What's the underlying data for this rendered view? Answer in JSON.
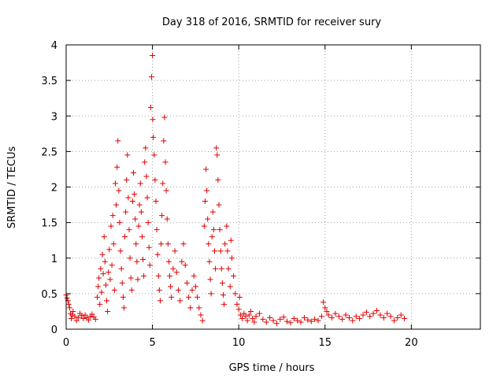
{
  "chart_data": {
    "type": "scatter",
    "title": "Day 318 of 2016, SRMTID for receiver sury",
    "xlabel": "GPS time / hours",
    "ylabel": "SRMTID / TECUs",
    "xlim": [
      0,
      24
    ],
    "ylim": [
      0,
      4
    ],
    "xticks": [
      0,
      5,
      10,
      15,
      20
    ],
    "xtick_labels": [
      "0",
      "5",
      "10",
      "15",
      "20"
    ],
    "yticks": [
      0,
      0.5,
      1,
      1.5,
      2,
      2.5,
      3,
      3.5,
      4
    ],
    "ytick_labels": [
      "0",
      "0.5",
      "1",
      "1.5",
      "2",
      "2.5",
      "3",
      "3.5",
      "4"
    ],
    "grid": true,
    "marker": "+",
    "marker_color": "#e00000",
    "series": [
      {
        "name": "SRMTID",
        "points": [
          [
            0.0,
            0.48
          ],
          [
            0.05,
            0.44
          ],
          [
            0.1,
            0.4
          ],
          [
            0.15,
            0.35
          ],
          [
            0.2,
            0.3
          ],
          [
            0.25,
            0.22
          ],
          [
            0.3,
            0.15
          ],
          [
            0.35,
            0.2
          ],
          [
            0.4,
            0.25
          ],
          [
            0.5,
            0.18
          ],
          [
            0.6,
            0.12
          ],
          [
            0.7,
            0.16
          ],
          [
            0.8,
            0.22
          ],
          [
            0.9,
            0.19
          ],
          [
            1.0,
            0.15
          ],
          [
            1.1,
            0.2
          ],
          [
            1.2,
            0.16
          ],
          [
            1.3,
            0.13
          ],
          [
            1.4,
            0.18
          ],
          [
            1.5,
            0.21
          ],
          [
            1.6,
            0.17
          ],
          [
            1.7,
            0.14
          ],
          [
            1.8,
            0.45
          ],
          [
            1.85,
            0.6
          ],
          [
            1.9,
            0.72
          ],
          [
            1.95,
            0.35
          ],
          [
            2.0,
            0.85
          ],
          [
            2.05,
            0.52
          ],
          [
            2.1,
            1.05
          ],
          [
            2.15,
            0.78
          ],
          [
            2.2,
            1.3
          ],
          [
            2.25,
            0.95
          ],
          [
            2.3,
            0.62
          ],
          [
            2.35,
            0.4
          ],
          [
            2.4,
            0.25
          ],
          [
            2.45,
            0.8
          ],
          [
            2.5,
            1.12
          ],
          [
            2.55,
            0.7
          ],
          [
            2.6,
            1.45
          ],
          [
            2.65,
            0.9
          ],
          [
            2.7,
            1.6
          ],
          [
            2.75,
            1.2
          ],
          [
            2.8,
            0.55
          ],
          [
            2.85,
            2.05
          ],
          [
            2.9,
            1.75
          ],
          [
            2.95,
            2.28
          ],
          [
            3.0,
            2.65
          ],
          [
            3.05,
            1.95
          ],
          [
            3.1,
            1.5
          ],
          [
            3.15,
            1.1
          ],
          [
            3.2,
            0.85
          ],
          [
            3.25,
            0.65
          ],
          [
            3.3,
            0.45
          ],
          [
            3.35,
            0.3
          ],
          [
            3.4,
            1.3
          ],
          [
            3.45,
            1.65
          ],
          [
            3.5,
            2.1
          ],
          [
            3.55,
            2.45
          ],
          [
            3.6,
            1.85
          ],
          [
            3.65,
            1.4
          ],
          [
            3.7,
            1.0
          ],
          [
            3.75,
            0.72
          ],
          [
            3.8,
            0.55
          ],
          [
            3.85,
            1.8
          ],
          [
            3.9,
            2.2
          ],
          [
            3.95,
            1.9
          ],
          [
            4.0,
            1.55
          ],
          [
            4.05,
            1.2
          ],
          [
            4.1,
            0.95
          ],
          [
            4.15,
            0.7
          ],
          [
            4.2,
            1.45
          ],
          [
            4.25,
            1.75
          ],
          [
            4.3,
            2.05
          ],
          [
            4.35,
            1.65
          ],
          [
            4.4,
            1.3
          ],
          [
            4.45,
            0.98
          ],
          [
            4.5,
            0.75
          ],
          [
            4.55,
            2.35
          ],
          [
            4.6,
            2.55
          ],
          [
            4.65,
            2.15
          ],
          [
            4.7,
            1.85
          ],
          [
            4.75,
            1.5
          ],
          [
            4.8,
            1.15
          ],
          [
            4.85,
            0.9
          ],
          [
            4.9,
            3.12
          ],
          [
            4.95,
            3.55
          ],
          [
            5.0,
            3.85
          ],
          [
            5.02,
            2.95
          ],
          [
            5.05,
            2.7
          ],
          [
            5.1,
            2.45
          ],
          [
            5.15,
            2.1
          ],
          [
            5.2,
            1.8
          ],
          [
            5.25,
            1.4
          ],
          [
            5.3,
            1.05
          ],
          [
            5.35,
            0.75
          ],
          [
            5.4,
            0.55
          ],
          [
            5.45,
            0.4
          ],
          [
            5.5,
            1.2
          ],
          [
            5.55,
            1.6
          ],
          [
            5.6,
            2.05
          ],
          [
            5.65,
            2.65
          ],
          [
            5.7,
            2.98
          ],
          [
            5.75,
            2.35
          ],
          [
            5.8,
            1.95
          ],
          [
            5.85,
            1.55
          ],
          [
            5.9,
            1.2
          ],
          [
            5.95,
            0.95
          ],
          [
            6.0,
            0.75
          ],
          [
            6.05,
            0.6
          ],
          [
            6.1,
            0.45
          ],
          [
            6.2,
            0.85
          ],
          [
            6.3,
            1.1
          ],
          [
            6.4,
            0.8
          ],
          [
            6.5,
            0.55
          ],
          [
            6.6,
            0.4
          ],
          [
            6.7,
            0.95
          ],
          [
            6.8,
            1.2
          ],
          [
            6.9,
            0.9
          ],
          [
            7.0,
            0.65
          ],
          [
            7.1,
            0.45
          ],
          [
            7.2,
            0.3
          ],
          [
            7.3,
            0.55
          ],
          [
            7.4,
            0.75
          ],
          [
            7.5,
            0.6
          ],
          [
            7.6,
            0.45
          ],
          [
            7.7,
            0.3
          ],
          [
            7.8,
            0.2
          ],
          [
            7.9,
            0.12
          ],
          [
            8.0,
            1.45
          ],
          [
            8.05,
            1.8
          ],
          [
            8.1,
            2.25
          ],
          [
            8.15,
            1.95
          ],
          [
            8.2,
            1.55
          ],
          [
            8.25,
            1.2
          ],
          [
            8.3,
            0.95
          ],
          [
            8.35,
            0.7
          ],
          [
            8.4,
            0.5
          ],
          [
            8.45,
            1.3
          ],
          [
            8.5,
            1.65
          ],
          [
            8.55,
            1.4
          ],
          [
            8.6,
            1.1
          ],
          [
            8.65,
            0.85
          ],
          [
            8.7,
            2.55
          ],
          [
            8.75,
            2.45
          ],
          [
            8.8,
            2.1
          ],
          [
            8.85,
            1.75
          ],
          [
            8.9,
            1.4
          ],
          [
            8.95,
            1.1
          ],
          [
            9.0,
            0.85
          ],
          [
            9.05,
            0.65
          ],
          [
            9.1,
            0.48
          ],
          [
            9.15,
            0.35
          ],
          [
            9.2,
            1.2
          ],
          [
            9.3,
            1.45
          ],
          [
            9.35,
            1.1
          ],
          [
            9.4,
            0.85
          ],
          [
            9.5,
            0.6
          ],
          [
            9.55,
            1.25
          ],
          [
            9.6,
            1.0
          ],
          [
            9.7,
            0.75
          ],
          [
            9.8,
            0.5
          ],
          [
            9.9,
            0.35
          ],
          [
            10.0,
            0.28
          ],
          [
            10.05,
            0.45
          ],
          [
            10.1,
            0.2
          ],
          [
            10.2,
            0.15
          ],
          [
            10.3,
            0.22
          ],
          [
            10.4,
            0.18
          ],
          [
            10.5,
            0.12
          ],
          [
            10.6,
            0.2
          ],
          [
            10.7,
            0.25
          ],
          [
            10.8,
            0.15
          ],
          [
            10.9,
            0.1
          ],
          [
            11.0,
            0.18
          ],
          [
            11.2,
            0.22
          ],
          [
            11.4,
            0.14
          ],
          [
            11.6,
            0.1
          ],
          [
            11.8,
            0.16
          ],
          [
            12.0,
            0.12
          ],
          [
            12.2,
            0.08
          ],
          [
            12.4,
            0.14
          ],
          [
            12.6,
            0.17
          ],
          [
            12.8,
            0.11
          ],
          [
            13.0,
            0.09
          ],
          [
            13.2,
            0.15
          ],
          [
            13.4,
            0.12
          ],
          [
            13.6,
            0.1
          ],
          [
            13.8,
            0.16
          ],
          [
            14.0,
            0.13
          ],
          [
            14.2,
            0.11
          ],
          [
            14.4,
            0.14
          ],
          [
            14.6,
            0.12
          ],
          [
            14.8,
            0.18
          ],
          [
            14.9,
            0.38
          ],
          [
            15.0,
            0.3
          ],
          [
            15.1,
            0.25
          ],
          [
            15.2,
            0.2
          ],
          [
            15.4,
            0.16
          ],
          [
            15.6,
            0.22
          ],
          [
            15.8,
            0.18
          ],
          [
            16.0,
            0.14
          ],
          [
            16.2,
            0.2
          ],
          [
            16.4,
            0.16
          ],
          [
            16.6,
            0.12
          ],
          [
            16.8,
            0.18
          ],
          [
            17.0,
            0.15
          ],
          [
            17.2,
            0.2
          ],
          [
            17.4,
            0.24
          ],
          [
            17.6,
            0.18
          ],
          [
            17.8,
            0.22
          ],
          [
            18.0,
            0.26
          ],
          [
            18.2,
            0.2
          ],
          [
            18.4,
            0.16
          ],
          [
            18.6,
            0.22
          ],
          [
            18.8,
            0.18
          ],
          [
            19.0,
            0.12
          ],
          [
            19.2,
            0.16
          ],
          [
            19.4,
            0.2
          ],
          [
            19.6,
            0.15
          ]
        ]
      }
    ]
  }
}
